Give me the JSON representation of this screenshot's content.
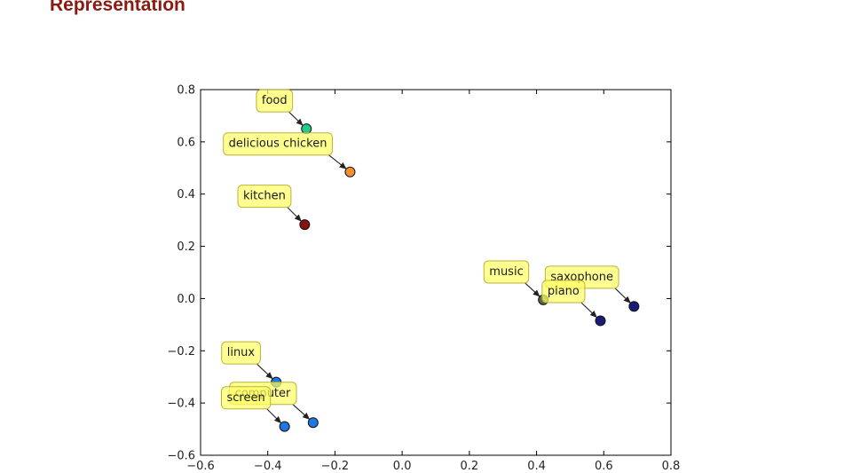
{
  "slide": {
    "title": "Representation"
  },
  "chart_data": {
    "type": "scatter",
    "title": "",
    "xlabel": "",
    "ylabel": "",
    "xlim": [
      -0.6,
      0.8
    ],
    "ylim": [
      -0.6,
      0.8
    ],
    "xticks": [
      "−0.6",
      "−0.4",
      "−0.2",
      "0.0",
      "0.2",
      "0.4",
      "0.6",
      "0.8"
    ],
    "xtick_values": [
      -0.6,
      -0.4,
      -0.2,
      0.0,
      0.2,
      0.4,
      0.6,
      0.8
    ],
    "yticks": [
      "0.8",
      "0.6",
      "0.4",
      "0.2",
      "0.0",
      "−0.2",
      "−0.4",
      "−0.6"
    ],
    "ytick_values": [
      0.8,
      0.6,
      0.4,
      0.2,
      0.0,
      -0.2,
      -0.4,
      -0.6
    ],
    "grid": false,
    "points": [
      {
        "label": "food",
        "x": -0.285,
        "y": 0.65,
        "color": "#22cc88",
        "label_x": -0.38,
        "label_y": 0.745
      },
      {
        "label": "delicious chicken",
        "x": -0.155,
        "y": 0.485,
        "color": "#f0902a",
        "label_x": -0.37,
        "label_y": 0.58
      },
      {
        "label": "kitchen",
        "x": -0.29,
        "y": 0.283,
        "color": "#8b1010",
        "label_x": -0.41,
        "label_y": 0.38
      },
      {
        "label": "music",
        "x": 0.42,
        "y": -0.005,
        "color": "#556644",
        "label_x": 0.31,
        "label_y": 0.09
      },
      {
        "label": "saxophone",
        "x": 0.69,
        "y": -0.03,
        "color": "#1a1a7a",
        "label_x": 0.535,
        "label_y": 0.07
      },
      {
        "label": "piano",
        "x": 0.59,
        "y": -0.085,
        "color": "#1a1a7a",
        "label_x": 0.48,
        "label_y": 0.015
      },
      {
        "label": "linux",
        "x": -0.375,
        "y": -0.32,
        "color": "#1f78e0",
        "label_x": -0.48,
        "label_y": -0.22
      },
      {
        "label": "computer",
        "x": -0.265,
        "y": -0.475,
        "color": "#1f78e0",
        "label_x": -0.415,
        "label_y": -0.375
      },
      {
        "label": "screen",
        "x": -0.35,
        "y": -0.49,
        "color": "#1f78e0",
        "label_x": -0.465,
        "label_y": -0.392
      }
    ]
  }
}
